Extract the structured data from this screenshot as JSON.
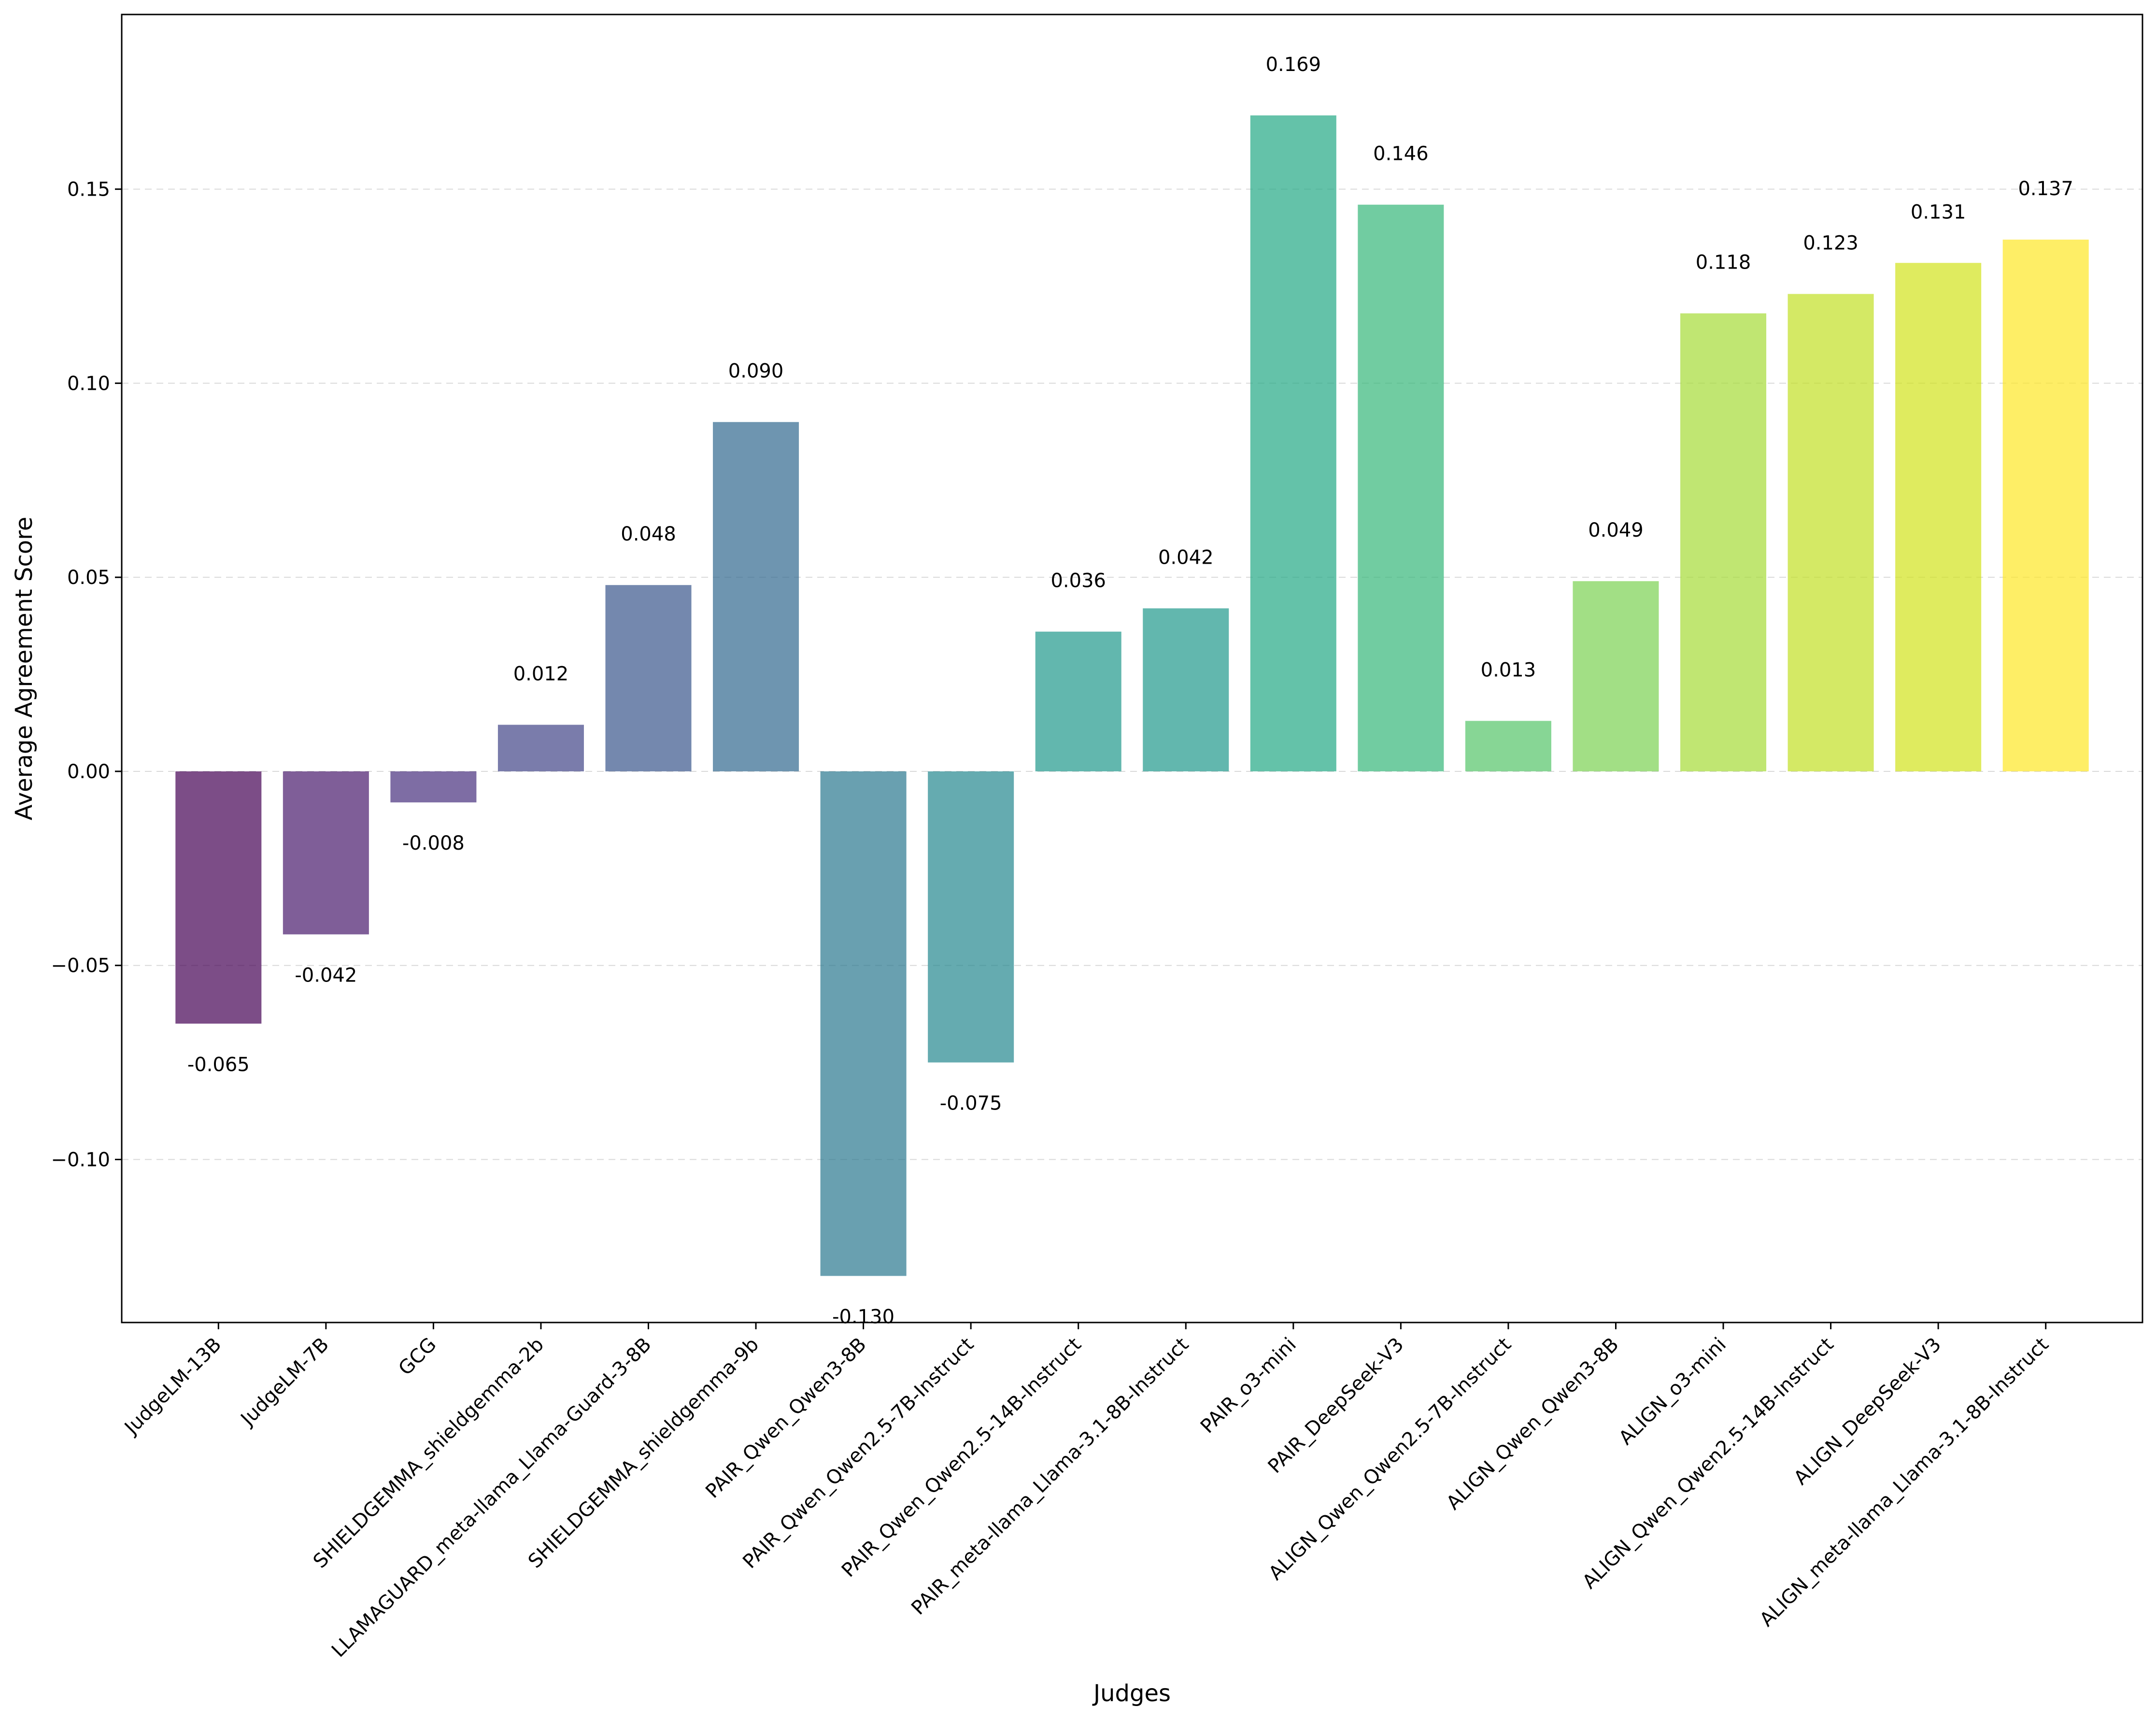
{
  "chart_data": {
    "type": "bar",
    "title": "",
    "xlabel": "Judges",
    "ylabel": "Average Agreement Score",
    "ylim": [
      -0.142,
      0.195
    ],
    "yticks": [
      -0.1,
      -0.05,
      0.0,
      0.05,
      0.1,
      0.15
    ],
    "ytick_labels": [
      "−0.10",
      "−0.05",
      "0.00",
      "0.05",
      "0.10",
      "0.15"
    ],
    "grid": "horizontal dashed",
    "categories": [
      "JudgeLM-13B",
      "JudgeLM-7B",
      "GCG",
      "SHIELDGEMMA_shieldgemma-2b",
      "LLAMAGUARD_meta-llama_Llama-Guard-3-8B",
      "SHIELDGEMMA_shieldgemma-9b",
      "PAIR_Qwen_Qwen3-8B",
      "PAIR_Qwen_Qwen2.5-7B-Instruct",
      "PAIR_Qwen_Qwen2.5-14B-Instruct",
      "PAIR_meta-llama_Llama-3.1-8B-Instruct",
      "PAIR_o3-mini",
      "PAIR_DeepSeek-V3",
      "ALIGN_Qwen_Qwen2.5-7B-Instruct",
      "ALIGN_Qwen_Qwen3-8B",
      "ALIGN_o3-mini",
      "ALIGN_Qwen_Qwen2.5-14B-Instruct",
      "ALIGN_DeepSeek-V3",
      "ALIGN_meta-llama_Llama-3.1-8B-Instruct"
    ],
    "values": [
      -0.065,
      -0.042,
      -0.008,
      0.012,
      0.048,
      0.09,
      -0.13,
      -0.075,
      0.036,
      0.042,
      0.169,
      0.146,
      0.013,
      0.049,
      0.118,
      0.123,
      0.131,
      0.137
    ],
    "value_labels": [
      "-0.065",
      "-0.042",
      "-0.008",
      "0.012",
      "0.048",
      "0.090",
      "-0.130",
      "-0.075",
      "0.036",
      "0.042",
      "0.169",
      "0.146",
      "0.013",
      "0.049",
      "0.118",
      "0.123",
      "0.131",
      "0.137"
    ],
    "colors": [
      "#440154",
      "#481a6c",
      "#472f7d",
      "#414487",
      "#39568c",
      "#31688e",
      "#2a788e",
      "#23888e",
      "#1f988b",
      "#22a884",
      "#35b779",
      "#54c568",
      "#7ad151",
      "#a5db36",
      "#d2e21b",
      "#fde725",
      "#b5de2b",
      "#6ece58"
    ],
    "bar_colors": [
      "#440154",
      "#481a6c",
      "#472f7d",
      "#414487",
      "#39568c",
      "#31688e",
      "#2a788e",
      "#23888e",
      "#1f988b",
      "#1f988b",
      "#22a884",
      "#35b779",
      "#54c568",
      "#7ad151",
      "#a5db36",
      "#c2df23",
      "#d2e21b",
      "#fde725"
    ],
    "bar_opacity": 0.7
  }
}
